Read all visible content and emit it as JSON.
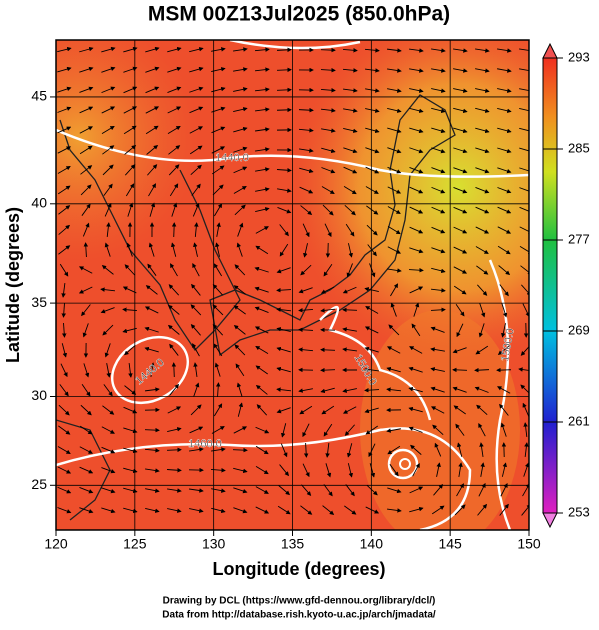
{
  "title": "MSM 00Z13Jul2025 (850.0hPa)",
  "x_axis": {
    "label": "Longitude (degrees)",
    "lim": [
      120,
      150
    ],
    "ticks": [
      120,
      125,
      130,
      135,
      140,
      145,
      150
    ]
  },
  "y_axis": {
    "label": "Latitude  (degrees)",
    "lim": [
      22.4,
      47.5
    ],
    "ticks": [
      25,
      30,
      35,
      40,
      45
    ],
    "projection": "mercator"
  },
  "colorbar": {
    "lim": [
      253,
      293
    ],
    "ticks": [
      253,
      261,
      269,
      277,
      285,
      293
    ]
  },
  "contour_labels": [
    "1440.0",
    "1440.0",
    "1460.0",
    "1500.0",
    "1500.0"
  ],
  "footer": [
    "Drawing by DCL (https://www.gfd-dennou.org/library/dcl/)",
    "Data from http://database.rish.kyoto-u.ac.jp/arch/jmadata/"
  ]
}
